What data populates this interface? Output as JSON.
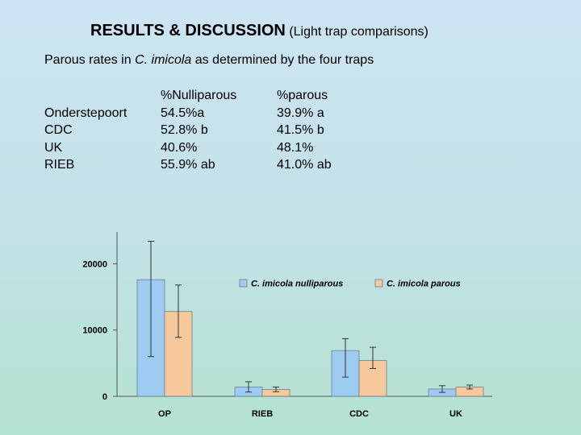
{
  "slide": {
    "title_main": "RESULTS & DISCUSSION",
    "title_sub": "(Light trap comparisons)",
    "subtitle_pre": "Parous rates in ",
    "subtitle_species": "C. imicola",
    "subtitle_post": " as determined by the four traps"
  },
  "table": {
    "rows": [
      "Onderstepoort",
      "CDC",
      "UK",
      "RIEB"
    ],
    "col1_header": "%Nulliparous",
    "col1": [
      "54.5%a",
      "52.8% b",
      "40.6%",
      "55.9% ab"
    ],
    "col2_header": "%parous",
    "col2": [
      "39.9% a",
      "41.5% b",
      "48.1%",
      "41.0% ab"
    ]
  },
  "chart_data": {
    "type": "bar",
    "categories": [
      "OP",
      "RIEB",
      "CDC",
      "UK"
    ],
    "series": [
      {
        "name": "C. imicola nulliparous",
        "color": "#9ecbf2",
        "values": [
          17600,
          1400,
          6900,
          1100
        ],
        "error_low": [
          6000,
          650,
          2900,
          600
        ],
        "error_high": [
          23400,
          2200,
          8700,
          1600
        ]
      },
      {
        "name": "C. imicola parous",
        "color": "#f6c89c",
        "values": [
          12800,
          1050,
          5400,
          1400
        ],
        "error_low": [
          8900,
          700,
          4200,
          1100
        ],
        "error_high": [
          16800,
          1400,
          7400,
          1700
        ]
      }
    ],
    "yticks": [
      0,
      10000,
      20000
    ],
    "ylim": [
      0,
      24800
    ],
    "legend_position": "top-right",
    "grid": false
  }
}
